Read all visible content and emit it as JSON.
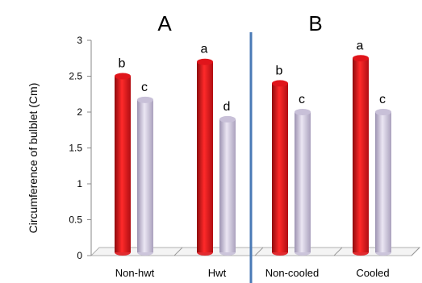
{
  "chart_data": {
    "type": "bar",
    "ylabel": "Circumference of bulblet (Cm)",
    "ylim": [
      0,
      3
    ],
    "yticks": [
      0,
      0.5,
      1,
      1.5,
      2,
      2.5,
      3
    ],
    "ytick_labels": [
      "0",
      "0.5",
      "1",
      "1.5",
      "2",
      "2.5",
      "3"
    ],
    "grid": false,
    "legend": "none",
    "panels": [
      "A",
      "B"
    ],
    "categories": [
      "Non-hwt",
      "Hwt",
      "Non-cooled",
      "Cooled"
    ],
    "series": [
      {
        "values": [
          2.5,
          2.7,
          2.4,
          2.75
        ],
        "color": "#e0151b"
      },
      {
        "values": [
          2.17,
          1.9,
          2.0,
          2.0
        ],
        "color": "#c8c0d8"
      }
    ],
    "significance_labels": [
      [
        "b",
        "a",
        "b",
        "a"
      ],
      [
        "c",
        "d",
        "c",
        "c"
      ]
    ],
    "divider_color": "#4a7ab6"
  }
}
